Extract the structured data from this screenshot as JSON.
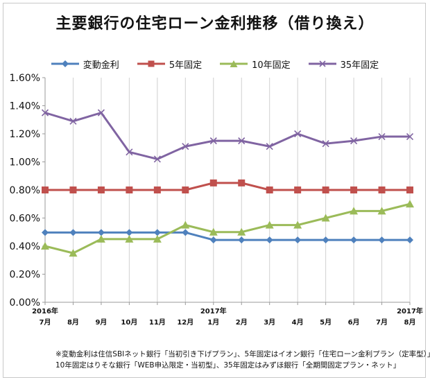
{
  "chart_data": {
    "type": "line",
    "title": "主要銀行の住宅ローン金利推移（借り換え）",
    "xlabel": "",
    "ylabel": "",
    "categories": [
      {
        "year": "2016年",
        "month": "7月"
      },
      {
        "year": "",
        "month": "8月"
      },
      {
        "year": "",
        "month": "9月"
      },
      {
        "year": "",
        "month": "10月"
      },
      {
        "year": "",
        "month": "11月"
      },
      {
        "year": "",
        "month": "12月"
      },
      {
        "year": "2017年",
        "month": "1月"
      },
      {
        "year": "",
        "month": "2月"
      },
      {
        "year": "",
        "month": "3月"
      },
      {
        "year": "",
        "month": "4月"
      },
      {
        "year": "",
        "month": "5月"
      },
      {
        "year": "",
        "month": "6月"
      },
      {
        "year": "",
        "month": "7月"
      },
      {
        "year": "2017年",
        "month": "8月"
      }
    ],
    "ylim": [
      0,
      1.6
    ],
    "yticks": [
      "0.00%",
      "0.20%",
      "0.40%",
      "0.60%",
      "0.80%",
      "1.00%",
      "1.20%",
      "1.40%",
      "1.60%"
    ],
    "grid": "vertical",
    "legend_position": "top",
    "series": [
      {
        "name": "変動金利",
        "color": "#4f81bd",
        "marker": "diamond",
        "values": [
          0.497,
          0.497,
          0.497,
          0.497,
          0.497,
          0.497,
          0.444,
          0.444,
          0.444,
          0.444,
          0.444,
          0.444,
          0.444,
          0.444
        ]
      },
      {
        "name": "5年固定",
        "color": "#c0504d",
        "marker": "square",
        "values": [
          0.8,
          0.8,
          0.8,
          0.8,
          0.8,
          0.8,
          0.85,
          0.85,
          0.8,
          0.8,
          0.8,
          0.8,
          0.8,
          0.8
        ]
      },
      {
        "name": "10年固定",
        "color": "#9bbb59",
        "marker": "triangle",
        "values": [
          0.4,
          0.35,
          0.45,
          0.45,
          0.45,
          0.55,
          0.5,
          0.5,
          0.55,
          0.55,
          0.6,
          0.65,
          0.65,
          0.7
        ]
      },
      {
        "name": "35年固定",
        "color": "#8064a2",
        "marker": "x",
        "values": [
          1.35,
          1.29,
          1.35,
          1.07,
          1.02,
          1.11,
          1.15,
          1.15,
          1.11,
          1.2,
          1.13,
          1.15,
          1.18,
          1.18
        ]
      }
    ]
  },
  "footnote": {
    "line1": "※変動金利は住信SBIネット銀行「当初引き下げプラン」、5年固定はイオン銀行「住宅ローン金利プラン（定率型）」、",
    "line2": "10年固定はりそな銀行「WEB申込限定・当初型」、35年固定はみずほ銀行「全期間固定プラン・ネット」"
  }
}
